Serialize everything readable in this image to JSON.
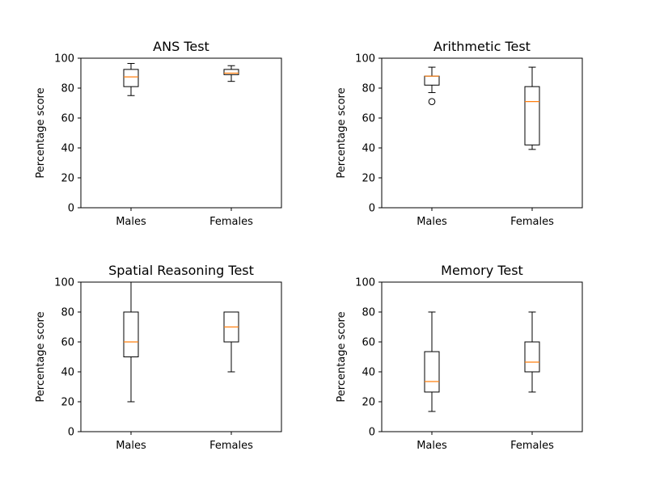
{
  "colors": {
    "background": "#ffffff",
    "axes": "#000000",
    "box": "#000000",
    "median": "#ff7f0e",
    "outlier_fill": "none"
  },
  "chart_data": [
    {
      "type": "box",
      "title": "ANS Test",
      "xlabel": "",
      "ylabel": "Percentage score",
      "ylim": [
        0,
        100
      ],
      "yticks": [
        0,
        20,
        40,
        60,
        80,
        100
      ],
      "grid": false,
      "categories": [
        "Males",
        "Females"
      ],
      "boxes": [
        {
          "category": "Males",
          "whisker_low": 75,
          "q1": 81,
          "median": 87.5,
          "q3": 92.5,
          "whisker_high": 96.5,
          "outliers": []
        },
        {
          "category": "Females",
          "whisker_low": 84.5,
          "q1": 89,
          "median": 90,
          "q3": 92.5,
          "whisker_high": 95,
          "outliers": []
        }
      ]
    },
    {
      "type": "box",
      "title": "Arithmetic Test",
      "xlabel": "",
      "ylabel": "Percentage score",
      "ylim": [
        0,
        100
      ],
      "yticks": [
        0,
        20,
        40,
        60,
        80,
        100
      ],
      "grid": false,
      "categories": [
        "Males",
        "Females"
      ],
      "boxes": [
        {
          "category": "Males",
          "whisker_low": 77,
          "q1": 82,
          "median": 88,
          "q3": 88,
          "whisker_high": 94,
          "outliers": [
            71
          ]
        },
        {
          "category": "Females",
          "whisker_low": 39,
          "q1": 42,
          "median": 71,
          "q3": 81,
          "whisker_high": 94,
          "outliers": []
        }
      ]
    },
    {
      "type": "box",
      "title": "Spatial Reasoning Test",
      "xlabel": "",
      "ylabel": "Percentage score",
      "ylim": [
        0,
        100
      ],
      "yticks": [
        0,
        20,
        40,
        60,
        80,
        100
      ],
      "grid": false,
      "categories": [
        "Males",
        "Females"
      ],
      "boxes": [
        {
          "category": "Males",
          "whisker_low": 20,
          "q1": 50,
          "median": 60,
          "q3": 80,
          "whisker_high": 100,
          "outliers": []
        },
        {
          "category": "Females",
          "whisker_low": 40,
          "q1": 60,
          "median": 70,
          "q3": 80,
          "whisker_high": 80,
          "outliers": []
        }
      ]
    },
    {
      "type": "box",
      "title": "Memory Test",
      "xlabel": "",
      "ylabel": "Percentage score",
      "ylim": [
        0,
        100
      ],
      "yticks": [
        0,
        20,
        40,
        60,
        80,
        100
      ],
      "grid": false,
      "categories": [
        "Males",
        "Females"
      ],
      "boxes": [
        {
          "category": "Males",
          "whisker_low": 13.5,
          "q1": 26.5,
          "median": 33.5,
          "q3": 53.5,
          "whisker_high": 80,
          "outliers": []
        },
        {
          "category": "Females",
          "whisker_low": 26.5,
          "q1": 40,
          "median": 46.5,
          "q3": 60,
          "whisker_high": 80,
          "outliers": []
        }
      ]
    }
  ]
}
